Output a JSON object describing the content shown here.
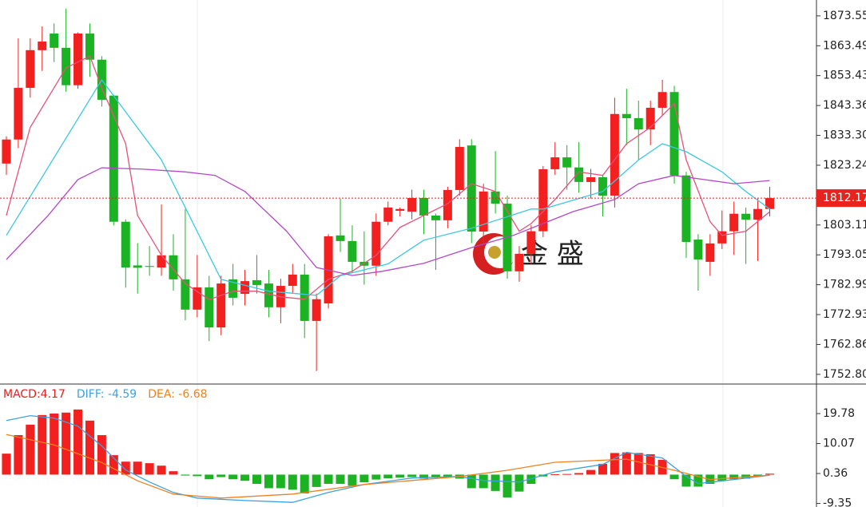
{
  "watermark": "金 盛",
  "chart_data": [
    {
      "type": "candlestick",
      "open": [
        1823.8,
        1831.9,
        1849.3,
        1862,
        1867.6,
        1862.8,
        1850.2,
        1867.6,
        1858.8,
        1846.7,
        1804.2,
        1789.5,
        1789.3,
        1788.8,
        1792.9,
        1784.8,
        1774.6,
        1782.1,
        1768.6,
        1784.8,
        1779.9,
        1784.5,
        1783.4,
        1775.4,
        1782.6,
        1786.4,
        1770.8,
        1776.7,
        1799.6,
        1797.7,
        1790.7,
        1789.4,
        1804.2,
        1807.9,
        1807.6,
        1812.2,
        1806.3,
        1804.7,
        1814.9,
        1829.9,
        1800.9,
        1814.4,
        1810.3,
        1787.5,
        1793.4,
        1801,
        1821.9,
        1825.9,
        1822.5,
        1817.6,
        1819.2,
        1813,
        1840.5,
        1839.1,
        1835.3,
        1842.6,
        1847.9,
        1819.8,
        1798.2,
        1790.7,
        1796.9,
        1801,
        1806.9,
        1804.9,
        1808.5
      ],
      "high": [
        1833,
        1866,
        1866,
        1870,
        1871,
        1876,
        1868,
        1871,
        1860,
        1847,
        1805,
        1797,
        1796,
        1810,
        1800,
        1808.5,
        1793,
        1786,
        1786,
        1790,
        1788,
        1793,
        1788,
        1785,
        1790,
        1790,
        1780,
        1800,
        1812,
        1803,
        1801,
        1807,
        1811,
        1809,
        1815,
        1815,
        1807,
        1816,
        1832,
        1832,
        1817,
        1828,
        1813,
        1796,
        1803,
        1823,
        1831,
        1830,
        1831,
        1822,
        1820,
        1846,
        1849,
        1845,
        1845,
        1852,
        1850,
        1821,
        1800,
        1800,
        1808,
        1811,
        1809,
        1812,
        1816
      ],
      "low": [
        1820,
        1829,
        1846,
        1855,
        1858,
        1848,
        1849,
        1853,
        1843,
        1803,
        1782,
        1780,
        1786,
        1786,
        1781,
        1771,
        1772,
        1764,
        1766,
        1776,
        1776,
        1780,
        1772,
        1770,
        1780,
        1765,
        1753.9,
        1775,
        1794,
        1787,
        1783,
        1786,
        1803,
        1806,
        1805,
        1800,
        1788,
        1802,
        1813,
        1797,
        1797,
        1807,
        1785,
        1784,
        1790,
        1799,
        1820,
        1815,
        1814,
        1812,
        1806,
        1809,
        1830,
        1825,
        1830,
        1840,
        1817,
        1792,
        1781,
        1786,
        1795,
        1793,
        1790,
        1791,
        1806
      ],
      "close": [
        1831.9,
        1849.3,
        1862,
        1864.9,
        1862.8,
        1850.2,
        1867.6,
        1858.8,
        1845.3,
        1804.2,
        1788.8,
        1788.7,
        1789.0,
        1792.9,
        1784.8,
        1774.6,
        1782.1,
        1768.6,
        1783.4,
        1778.6,
        1784.2,
        1782.9,
        1775.4,
        1782.6,
        1786.4,
        1770.8,
        1778.1,
        1799.3,
        1797.7,
        1790.7,
        1789.4,
        1804.2,
        1809,
        1808.5,
        1812.2,
        1806.3,
        1804.7,
        1814.9,
        1829.4,
        1800.9,
        1814.4,
        1810.3,
        1787.5,
        1793.4,
        1801,
        1821.9,
        1825.9,
        1822.5,
        1817.6,
        1819.2,
        1813,
        1840.5,
        1839.1,
        1835.3,
        1842.6,
        1847.9,
        1819.8,
        1797.4,
        1791.5,
        1796.9,
        1801,
        1806.9,
        1804.9,
        1808.5,
        1812.17
      ],
      "up_color": "#f2201e",
      "down_color": "#1bb324",
      "lines": [
        {
          "color": "#e8507a",
          "x": [
            0,
            2,
            5,
            7,
            8,
            10,
            11,
            13,
            15,
            17,
            19,
            21,
            23,
            25,
            27,
            29,
            31,
            33,
            35,
            37,
            39,
            41,
            43,
            44,
            46,
            48,
            50,
            52,
            54,
            56,
            57,
            59,
            60,
            62,
            64
          ],
          "values": [
            1806.3,
            1836,
            1856,
            1860,
            1849.3,
            1830.5,
            1806.3,
            1792.9,
            1783.4,
            1778,
            1780.8,
            1780.8,
            1778.9,
            1778.1,
            1784.8,
            1787.5,
            1792.9,
            1802.3,
            1806.3,
            1810.3,
            1817,
            1814.4,
            1801,
            1803.6,
            1811.7,
            1821,
            1819.8,
            1830.5,
            1836,
            1844,
            1825,
            1804.2,
            1799.6,
            1801,
            1807.6
          ]
        },
        {
          "color": "#3cc8e0",
          "x": [
            0,
            8,
            13,
            15,
            18,
            22,
            26,
            28,
            32,
            35,
            39,
            44,
            45,
            50,
            53,
            55,
            57,
            60,
            62,
            64
          ],
          "values": [
            1799.6,
            1852,
            1825,
            1809,
            1784.8,
            1780.8,
            1779.4,
            1786,
            1790,
            1798,
            1802,
            1808.5,
            1808.5,
            1814.4,
            1825,
            1830.5,
            1827.8,
            1821,
            1814.4,
            1808.5
          ]
        },
        {
          "color": "#b347c8",
          "x": [
            0,
            3.5,
            6,
            8,
            11.5,
            15,
            17.5,
            20,
            23.5,
            26,
            29,
            31.5,
            35,
            39,
            42.5,
            45,
            47.5,
            51,
            53,
            56,
            58.5,
            61,
            64
          ],
          "values": [
            1791.5,
            1806.3,
            1818.4,
            1822.4,
            1821.9,
            1821,
            1819.8,
            1814.4,
            1801,
            1788.8,
            1786.1,
            1787.5,
            1790.2,
            1795.5,
            1799.6,
            1803.6,
            1807.6,
            1811.7,
            1817,
            1819.8,
            1818.4,
            1817,
            1818.1
          ]
        }
      ],
      "last_price": 1812.17,
      "last_price_color": "#e8231f",
      "ylim": [
        1749.8,
        1878.9
      ],
      "yticks": [
        1873.55,
        1863.49,
        1853.43,
        1843.36,
        {
          "value": 1833.3,
          "label": "1833.30"
        },
        1823.24,
        1803.11,
        1793.05,
        1782.99,
        1772.93,
        1762.86,
        {
          "value": 1752.8,
          "label": "1752.80"
        }
      ]
    },
    {
      "type": "macd",
      "legend": [
        {
          "label": "MACD:4.17",
          "color": "#e02020"
        },
        {
          "label": "DIFF: -4.59",
          "color": "#3ca0e0"
        },
        {
          "label": "DEA: -6.68",
          "color": "#f08020"
        }
      ],
      "histogram": [
        6.8,
        12.8,
        16.2,
        19.3,
        19.8,
        20.1,
        21.1,
        17.5,
        12.8,
        6.3,
        4.2,
        4.2,
        3.7,
        2.9,
        1.1,
        -0.3,
        -0.5,
        -1.5,
        -0.8,
        -1.5,
        -2.0,
        -3.0,
        -4.4,
        -4.4,
        -4.9,
        -6.1,
        -4.0,
        -3.0,
        -3.0,
        -3.6,
        -2.5,
        -1.6,
        -1.2,
        -1.0,
        -0.8,
        -1.3,
        -0.9,
        -0.8,
        -1.3,
        -4.4,
        -4.4,
        -5.3,
        -7.4,
        -5.5,
        -3.0,
        -0.6,
        0.1,
        0.2,
        0.5,
        1.5,
        3.5,
        7.0,
        7.2,
        7.0,
        6.6,
        4.8,
        -1.5,
        -3.9,
        -3.9,
        -3.0,
        -2.0,
        -1.5,
        -1.3,
        -0.6,
        0.3
      ],
      "up_color": "#f2201e",
      "down_color": "#1bb324",
      "diff": {
        "color": "#3ca0e0",
        "x": [
          0,
          2,
          4,
          6,
          8,
          10,
          12,
          14,
          16,
          20,
          24,
          27,
          30,
          34,
          38,
          40,
          43,
          46,
          50,
          52,
          55,
          57,
          58,
          61,
          64
        ],
        "values": [
          17.5,
          19.1,
          18.3,
          15.7,
          9.3,
          1.5,
          -2.4,
          -5.8,
          -7.6,
          -8.4,
          -9.0,
          -5.8,
          -3.2,
          -1.1,
          -0.6,
          -1.9,
          -2.4,
          0.9,
          3.3,
          7.2,
          5.4,
          -0.6,
          -2.9,
          -1.6,
          -0.2
        ]
      },
      "dea": {
        "color": "#f08020",
        "x": [
          0,
          4,
          8,
          11,
          14,
          18,
          24,
          30,
          38,
          42,
          46,
          52,
          56,
          59,
          64
        ],
        "values": [
          13.0,
          9.6,
          3.9,
          -2.0,
          -6.3,
          -7.6,
          -6.3,
          -3.2,
          -0.6,
          1.4,
          4.0,
          5.0,
          1.4,
          -1.6,
          -0.2
        ]
      },
      "ylim": [
        -10.5,
        29.1
      ],
      "yticks": [
        19.78,
        10.07,
        0.36,
        -9.35
      ]
    }
  ]
}
